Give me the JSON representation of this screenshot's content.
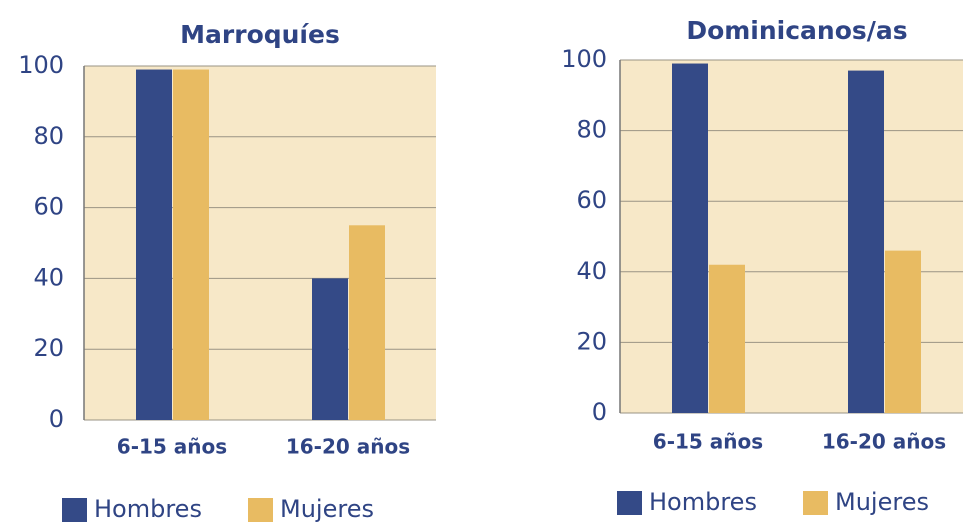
{
  "chart_data": [
    {
      "type": "bar",
      "title": "Marroquíes",
      "categories": [
        "6-15 años",
        "16-20 años"
      ],
      "series": [
        {
          "name": "Hombres",
          "color": "#344a87",
          "values": [
            99,
            40
          ]
        },
        {
          "name": "Mujeres",
          "color": "#e8bb62",
          "values": [
            99,
            55
          ]
        }
      ],
      "ylim": [
        0,
        100
      ],
      "yticks": [
        0,
        20,
        40,
        60,
        80,
        100
      ],
      "grid": true,
      "legend": "bottom"
    },
    {
      "type": "bar",
      "title": "Dominicanos/as",
      "categories": [
        "6-15 años",
        "16-20 años"
      ],
      "series": [
        {
          "name": "Hombres",
          "color": "#344a87",
          "values": [
            99,
            97
          ]
        },
        {
          "name": "Mujeres",
          "color": "#e8bb62",
          "values": [
            42,
            46
          ]
        }
      ],
      "ylim": [
        0,
        100
      ],
      "yticks": [
        0,
        20,
        40,
        60,
        80,
        100
      ],
      "grid": true,
      "legend": "bottom"
    }
  ]
}
